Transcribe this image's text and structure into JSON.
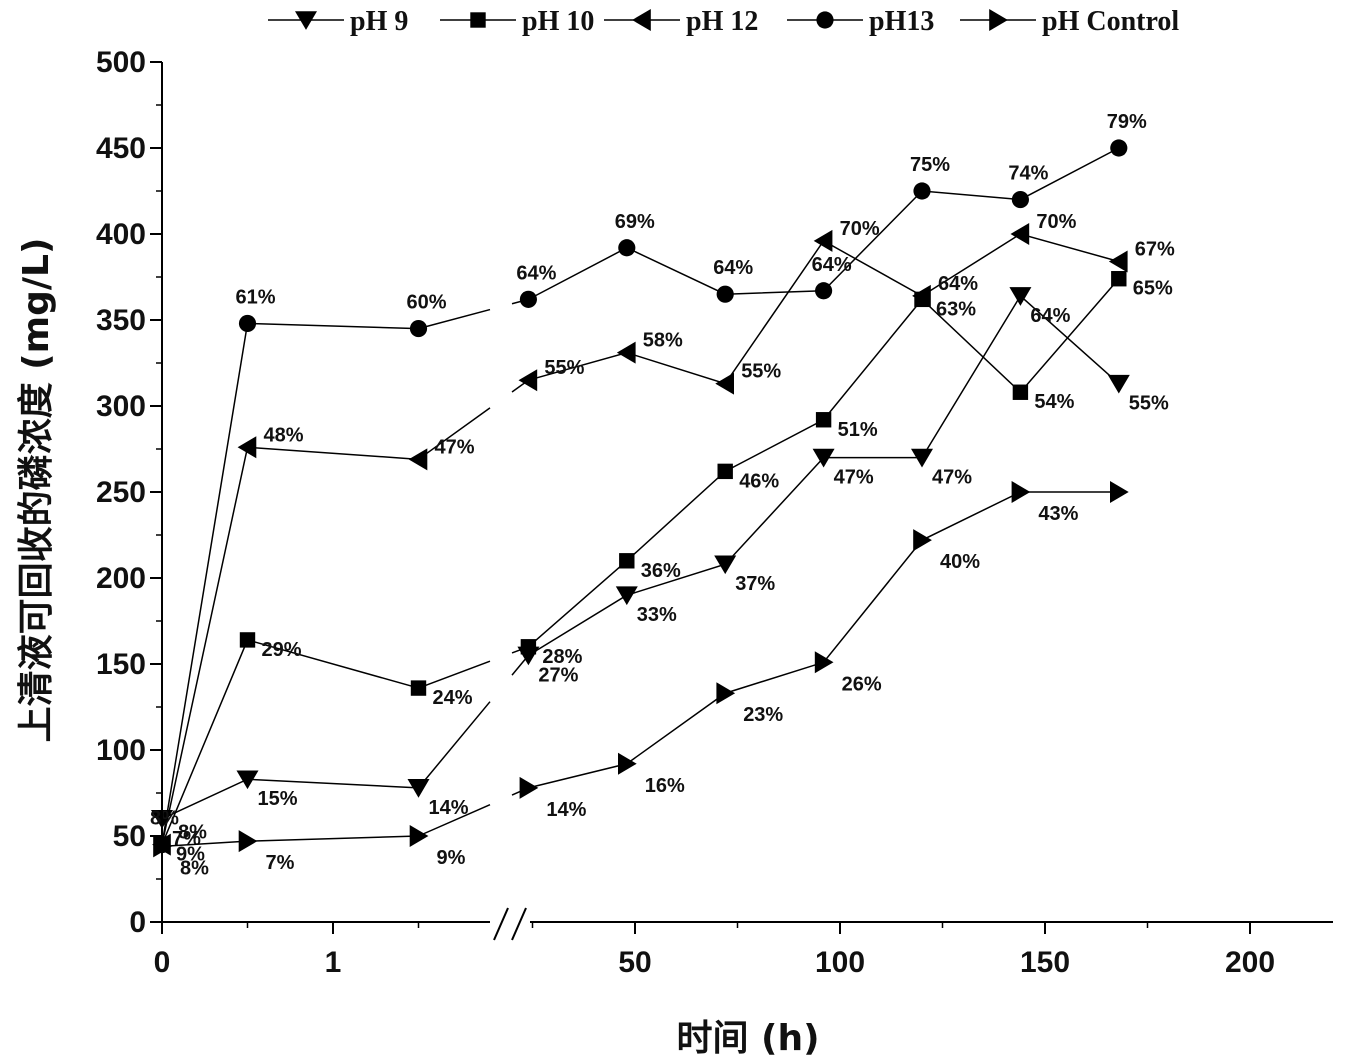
{
  "chart_data": {
    "type": "line",
    "xlabel": "时间 (h)",
    "ylabel": "上清液可回收的磷浓度 (mg/L)",
    "ylim": [
      0,
      500
    ],
    "yticks": [
      0,
      50,
      100,
      150,
      200,
      250,
      300,
      350,
      400,
      450,
      500
    ],
    "x_axis_note": "broken axis: linear 0–2 h segment, then 24–200 h segment",
    "xticks": [
      {
        "label": "0",
        "value": 0
      },
      {
        "label": "1",
        "value": 1
      },
      {
        "label": "50",
        "value": 50
      },
      {
        "label": "100",
        "value": 100
      },
      {
        "label": "150",
        "value": 150
      },
      {
        "label": "200",
        "value": 200
      }
    ],
    "x": [
      0,
      0.5,
      1.5,
      24,
      48,
      72,
      96,
      120,
      144,
      168
    ],
    "legend_position": "top",
    "series": [
      {
        "name": "pH 9",
        "marker": "triangle-down",
        "values": [
          60,
          83,
          78,
          155,
          190,
          208,
          270,
          270,
          364,
          313
        ],
        "labels": [
          "7%",
          "15%",
          "14%",
          "27%",
          "33%",
          "37%",
          "47%",
          "47%",
          "64%",
          "55%"
        ]
      },
      {
        "name": "pH 10",
        "marker": "square",
        "values": [
          45,
          164,
          136,
          160,
          210,
          262,
          292,
          362,
          308,
          374
        ],
        "labels": [
          "9%",
          "29%",
          "24%",
          "28%",
          "36%",
          "46%",
          "51%",
          "63%",
          "54%",
          "65%"
        ]
      },
      {
        "name": "pH 12",
        "marker": "triangle-left",
        "values": [
          45,
          276,
          269,
          315,
          331,
          313,
          396,
          364,
          400,
          384
        ],
        "labels": [
          "8%",
          "48%",
          "47%",
          "55%",
          "58%",
          "55%",
          "70%",
          "64%",
          "70%",
          "67%"
        ]
      },
      {
        "name": "pH13",
        "marker": "circle",
        "values": [
          45,
          348,
          345,
          362,
          392,
          365,
          367,
          425,
          420,
          450
        ],
        "labels": [
          "8%",
          "61%",
          "60%",
          "64%",
          "69%",
          "64%",
          "64%",
          "75%",
          "74%",
          "79%"
        ]
      },
      {
        "name": "pH Control",
        "marker": "triangle-right",
        "values": [
          44,
          47,
          50,
          78,
          92,
          133,
          151,
          222,
          250,
          250
        ],
        "labels": [
          "8%",
          "7%",
          "9%",
          "14%",
          "16%",
          "23%",
          "26%",
          "40%",
          "43%",
          ""
        ]
      }
    ]
  }
}
